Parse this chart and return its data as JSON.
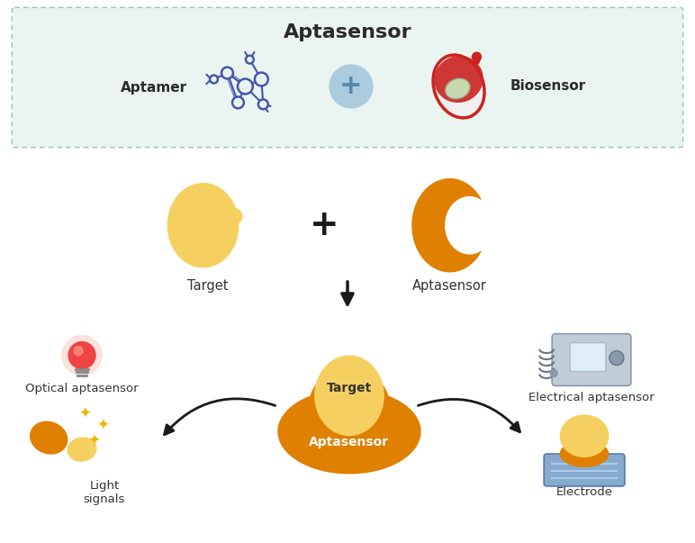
{
  "title": "Aptasensor",
  "top_box_color": "#eaf4f0",
  "top_box_border": "#8ec8b0",
  "background_color": "#ffffff",
  "text_aptamer": "Aptamer",
  "text_biosensor": "Biosensor",
  "text_target": "Target",
  "text_aptasensor_label": "Aptasensor",
  "text_optical": "Optical aptasensor",
  "text_electrical": "Electrical aptasensor",
  "text_light": "Light\nsignals",
  "text_electrode": "Electrode",
  "yellow_color": "#F5D060",
  "yellow_light": "#F8E080",
  "orange_color": "#E08000",
  "title_fontsize": 16,
  "label_fontsize": 10.5,
  "arrow_color": "#1a1a1a",
  "mol_color": "#4455aa",
  "plus_circle_color": "#aaccdd",
  "plus_text_color": "#5588aa"
}
